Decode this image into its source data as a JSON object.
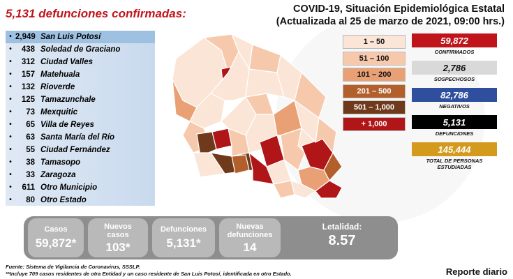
{
  "header": {
    "headline": "5,131 defunciones confirmadas:",
    "title_line1": "COVID-19, Situación Epidemiológica Estatal",
    "title_line2": "(Actualizada al 25 de marzo de 2021, 09:00 hrs.)"
  },
  "municipalities": [
    {
      "value": "2,949",
      "name": "San Luis Potosí"
    },
    {
      "value": "438",
      "name": "Soledad de Graciano"
    },
    {
      "value": "312",
      "name": "Ciudad Valles"
    },
    {
      "value": "157",
      "name": "Matehuala"
    },
    {
      "value": "132",
      "name": "Rioverde"
    },
    {
      "value": "125",
      "name": "Tamazunchale"
    },
    {
      "value": "73",
      "name": "Mexquitic"
    },
    {
      "value": "65",
      "name": "Villa de Reyes"
    },
    {
      "value": "63",
      "name": "Santa María del Río"
    },
    {
      "value": "55",
      "name": "Ciudad Fernández"
    },
    {
      "value": "38",
      "name": "Tamasopo"
    },
    {
      "value": "33",
      "name": "Zaragoza"
    },
    {
      "value": "611",
      "name": "Otro Municipio"
    },
    {
      "value": "80",
      "name": "Otro Estado"
    }
  ],
  "legend": [
    {
      "label": "1 – 50",
      "color": "#fbe5d6",
      "text_color": "#111111"
    },
    {
      "label": "51 – 100",
      "color": "#f6c9ac",
      "text_color": "#111111"
    },
    {
      "label": "101 – 200",
      "color": "#e9a074",
      "text_color": "#111111"
    },
    {
      "label": "201 – 500",
      "color": "#b25f2c",
      "text_color": "#ffffff"
    },
    {
      "label": "501 – 1,000",
      "color": "#6f3a1b",
      "text_color": "#ffffff"
    },
    {
      "label": "+ 1,000",
      "color": "#b01518",
      "text_color": "#ffffff"
    }
  ],
  "stats": [
    {
      "value": "59,872",
      "label": "CONFIRMADOS",
      "color": "#c0141b",
      "text_color": "#ffffff"
    },
    {
      "value": "2,786",
      "label": "SOSPECHOSOS",
      "color": "#d9d9d9",
      "text_color": "#111111"
    },
    {
      "value": "82,786",
      "label": "NEGATIVOS",
      "color": "#2f4f9e",
      "text_color": "#ffffff"
    },
    {
      "value": "5,131",
      "label": "DEFUNCIONES",
      "color": "#000000",
      "text_color": "#ffffff"
    },
    {
      "value": "145,444",
      "label": "TOTAL DE PERSONAS ESTUDIADAS",
      "color": "#d49a1e",
      "text_color": "#ffffff"
    }
  ],
  "summary": {
    "casos_label": "Casos",
    "casos_value": "59,872*",
    "nuevos_casos_label": "Nuevos casos",
    "nuevos_casos_value": "103*",
    "defunciones_label": "Defunciones",
    "defunciones_value": "5,131*",
    "nuevas_defunciones_label": "Nuevas defunciones",
    "nuevas_defunciones_value": "14",
    "letalidad_label": "Letalidad:",
    "letalidad_value": "8.57"
  },
  "footer": {
    "source": "Fuente: Sistema de Vigilancia de Coronavirus, SSSLP.",
    "note": "**Incluye 709 casos residentes de otra Entidad y un caso residente de San Luis Potosí, identificada en otro Estado.",
    "report": "Reporte diario"
  }
}
